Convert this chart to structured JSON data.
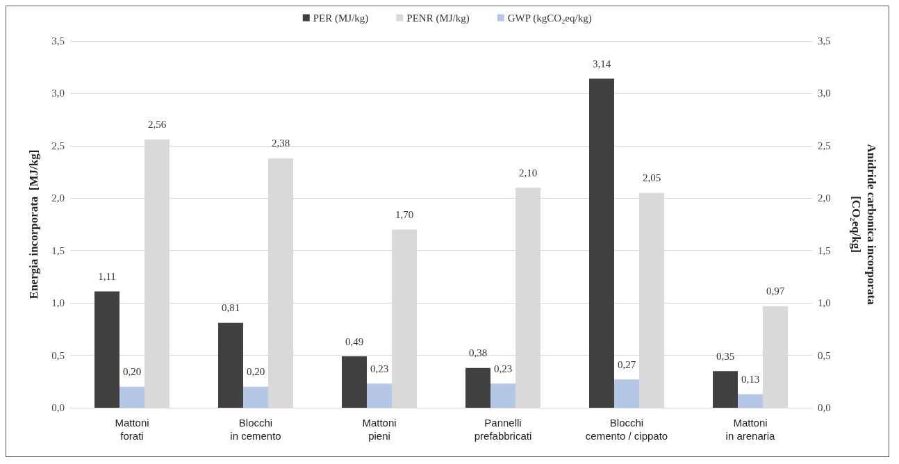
{
  "chart_data": {
    "type": "bar",
    "categories": [
      "Mattoni\nforati",
      "Blocchi\nin cemento",
      "Mattoni\npieni",
      "Pannelli\nprefabbricati",
      "Blocchi\ncemento / cippato",
      "Mattoni\nin arenaria"
    ],
    "series": [
      {
        "name": "PER (MJ/kg)",
        "color": "#404040",
        "values": [
          1.11,
          0.81,
          0.49,
          0.38,
          3.14,
          0.35
        ],
        "value_labels": [
          "1,11",
          "0,81",
          "0,49",
          "0,38",
          "3,14",
          "0,35"
        ]
      },
      {
        "name": "PENR (MJ/kg)",
        "color": "#d9d9d9",
        "values": [
          2.56,
          2.38,
          1.7,
          2.1,
          2.05,
          0.97
        ],
        "value_labels": [
          "2,56",
          "2,38",
          "1,70",
          "2,10",
          "2,05",
          "0,97"
        ]
      },
      {
        "name": "GWP (kgCO₂eq/kg)",
        "color": "#b4c7e7",
        "axis": "y2",
        "values": [
          0.2,
          0.2,
          0.23,
          0.23,
          0.27,
          0.13
        ],
        "value_labels": [
          "0,20",
          "0,20",
          "0,23",
          "0,23",
          "0,27",
          "0,13"
        ]
      }
    ],
    "ylabel": "Energia incorporata  [MJ/kg]",
    "y2label": "Anidride carbonica incorporata\n[CO₂eq/kg]",
    "ylim": [
      0,
      3.5
    ],
    "yticks": [
      {
        "value": 0,
        "label": "0,0"
      },
      {
        "value": 0.5,
        "label": "0,5"
      },
      {
        "value": 1,
        "label": "1,0"
      },
      {
        "value": 1.5,
        "label": "1,5"
      },
      {
        "value": 2,
        "label": "2,0"
      },
      {
        "value": 2.5,
        "label": "2,5"
      },
      {
        "value": 3,
        "label": "3,0"
      },
      {
        "value": 3.5,
        "label": "3,5"
      }
    ],
    "y2lim": [
      0,
      3.5
    ],
    "y2ticks": [
      {
        "value": 0,
        "label": "0,0"
      },
      {
        "value": 0.5,
        "label": "0,5"
      },
      {
        "value": 1,
        "label": "1,0"
      },
      {
        "value": 1.5,
        "label": "1,5"
      },
      {
        "value": 2,
        "label": "2,0"
      },
      {
        "value": 2.5,
        "label": "2,5"
      },
      {
        "value": 3,
        "label": "3,0"
      },
      {
        "value": 3.5,
        "label": "3,5"
      }
    ],
    "grid": "y",
    "legend": "top"
  }
}
